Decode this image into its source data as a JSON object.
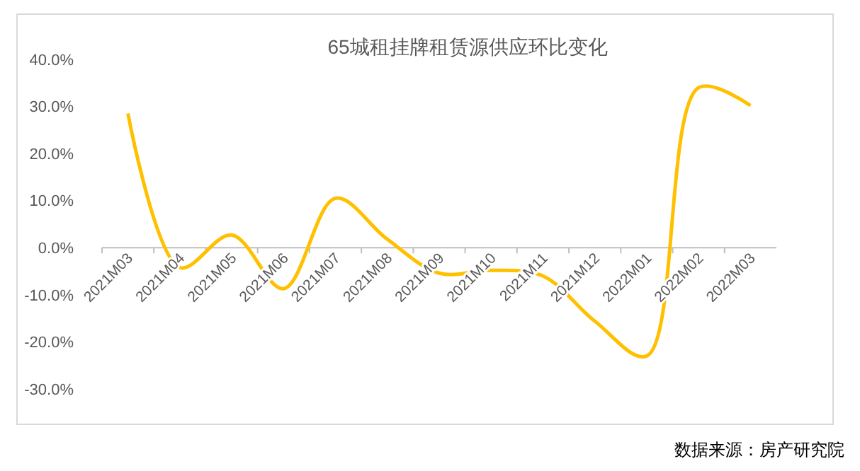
{
  "chart_data": {
    "type": "line",
    "title": "65城租挂牌租赁源供应环比变化",
    "categories": [
      "2021M03",
      "2021M04",
      "2021M05",
      "2021M06",
      "2021M07",
      "2021M08",
      "2021M09",
      "2021M10",
      "2021M11",
      "2021M12",
      "2022M01",
      "2022M02",
      "2022M03"
    ],
    "series": [
      {
        "color": "#ffc000",
        "values": [
          28.5,
          -4.2,
          2.7,
          -8.7,
          10.5,
          1.8,
          -5.4,
          -4.8,
          -6,
          -15.6,
          -23,
          34,
          30.2
        ]
      }
    ],
    "ylim": [
      -30,
      40
    ],
    "yticks": [
      {
        "value": -30,
        "label": "-30.0%"
      },
      {
        "value": -20,
        "label": "-20.0%"
      },
      {
        "value": -10,
        "label": "-10.0%"
      },
      {
        "value": 0,
        "label": "0.0%"
      },
      {
        "value": 10,
        "label": "10.0%"
      },
      {
        "value": 20,
        "label": "20.0%"
      },
      {
        "value": 30,
        "label": "30.0%"
      },
      {
        "value": 40,
        "label": "40.0%"
      }
    ],
    "grid": false,
    "marker": "none",
    "line_style": "solid",
    "annotations": [
      "数据来源：房产研究院"
    ]
  }
}
